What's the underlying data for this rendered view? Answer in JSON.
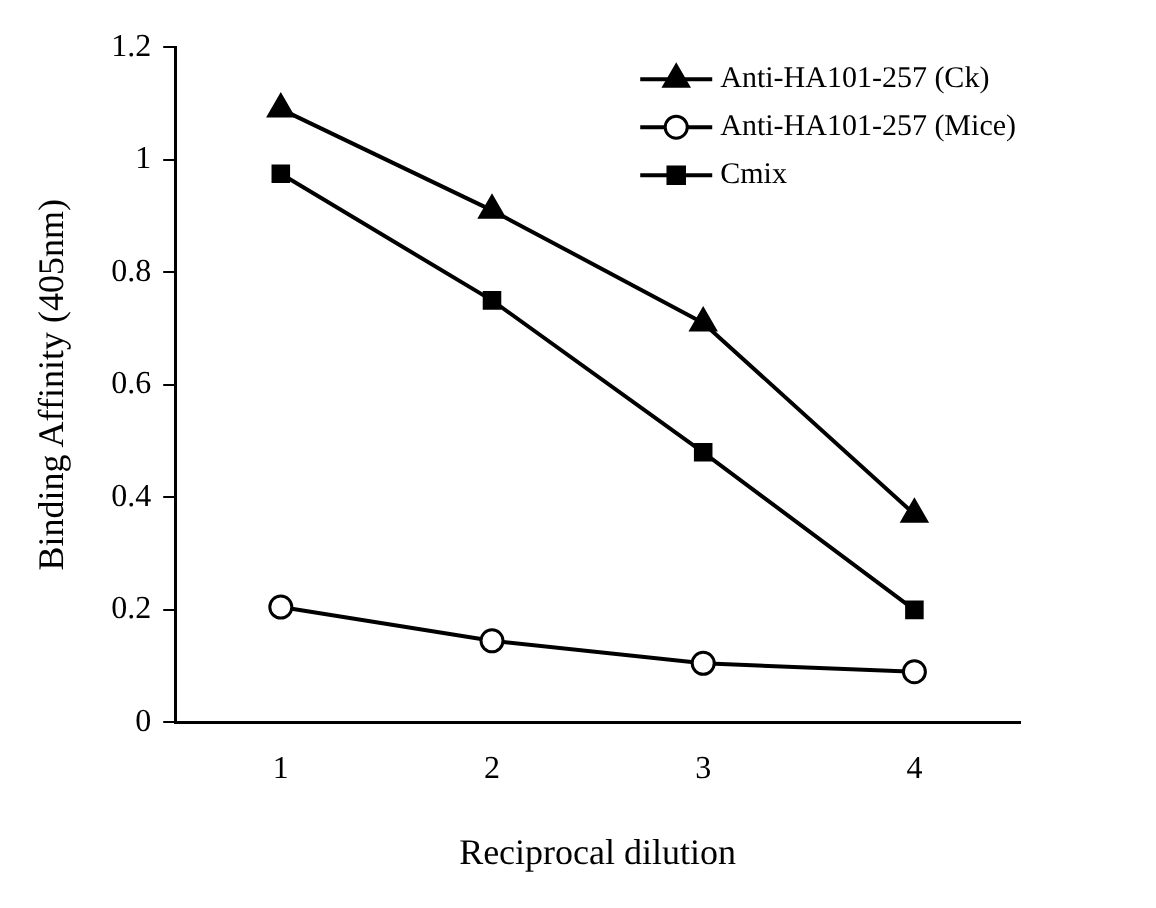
{
  "chart_data": {
    "type": "line",
    "xlabel": "Reciprocal dilution",
    "ylabel": "Binding Affinity (405nm)",
    "categories": [
      "1",
      "2",
      "3",
      "4"
    ],
    "series": [
      {
        "name": "Anti-HA101-257 (Ck)",
        "color": "#000000",
        "marker": "triangle",
        "values": [
          1.09,
          0.91,
          0.71,
          0.37
        ]
      },
      {
        "name": "Anti-HA101-257 (Mice)",
        "color": "#000000",
        "marker": "circle",
        "values": [
          0.205,
          0.145,
          0.105,
          0.09
        ]
      },
      {
        "name": "Cmix",
        "color": "#000000",
        "marker": "square",
        "values": [
          0.975,
          0.75,
          0.48,
          0.2
        ]
      }
    ],
    "ylim": [
      0,
      1.2
    ],
    "yticks": [
      0,
      {
        "value": 0.2,
        "label": "0.2"
      },
      {
        "value": 0.4,
        "label": "0.4"
      },
      {
        "value": 0.6,
        "label": "0.6"
      },
      {
        "value": 0.8,
        "label": "0.8"
      },
      1,
      {
        "value": 1.2,
        "label": "1.2"
      }
    ],
    "grid": false,
    "legend": "top right",
    "line_style": "solid"
  }
}
